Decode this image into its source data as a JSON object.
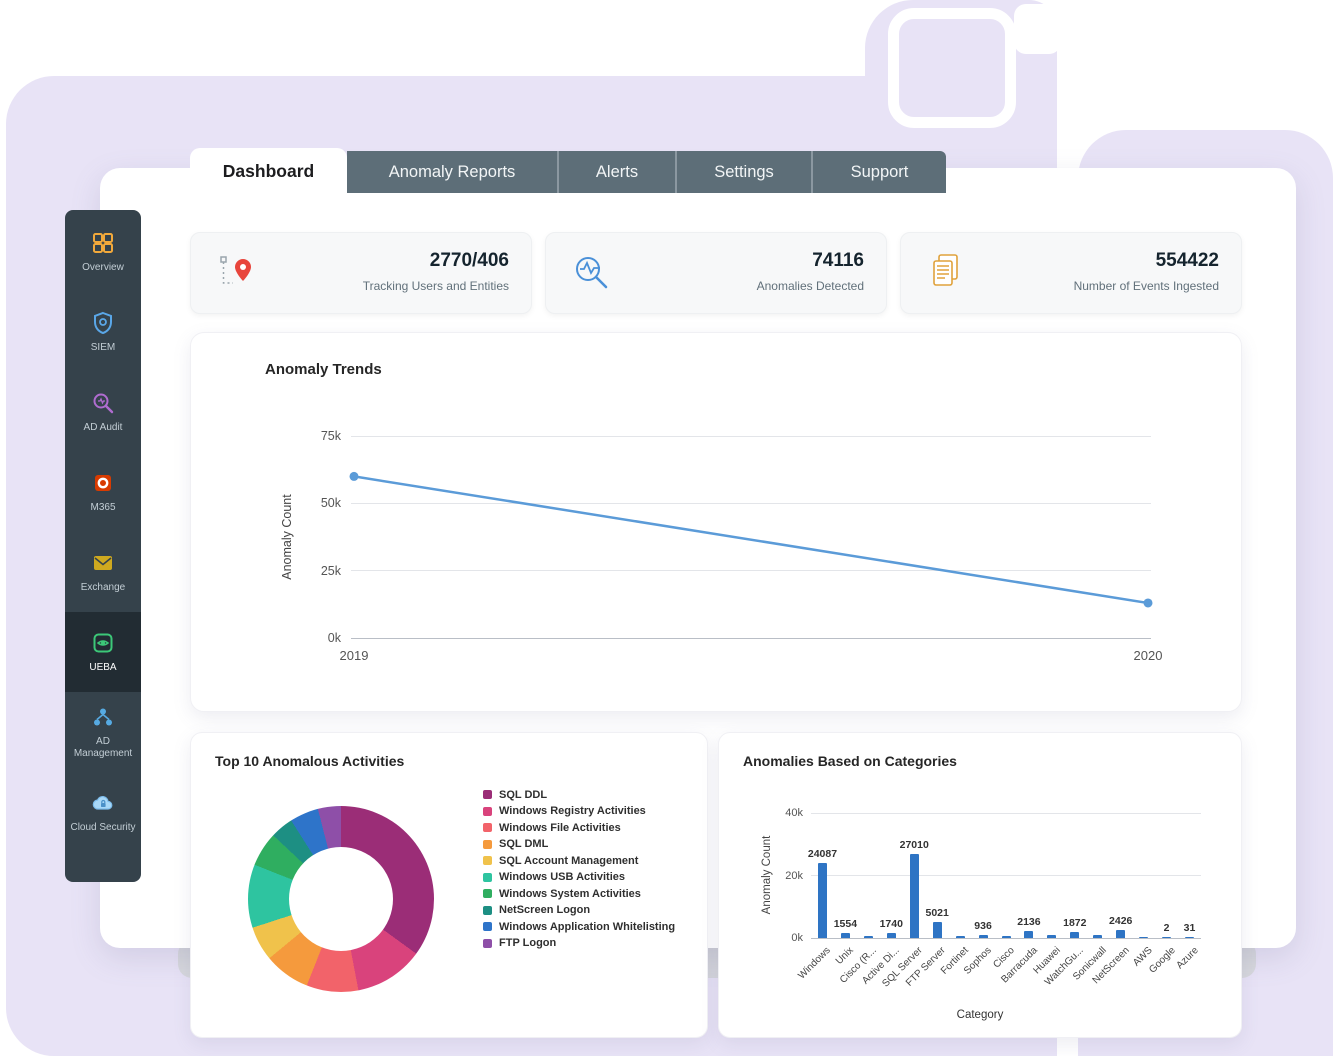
{
  "tabs": {
    "items": [
      {
        "label": "Dashboard",
        "active": true
      },
      {
        "label": "Anomaly Reports",
        "active": false
      },
      {
        "label": "Alerts",
        "active": false
      },
      {
        "label": "Settings",
        "active": false
      },
      {
        "label": "Support",
        "active": false
      }
    ]
  },
  "sidebar": {
    "items": [
      {
        "label": "Overview",
        "icon": "grid-icon",
        "active": false
      },
      {
        "label": "SIEM",
        "icon": "shield-icon",
        "active": false
      },
      {
        "label": "AD Audit",
        "icon": "audit-magnifier-icon",
        "active": false
      },
      {
        "label": "M365",
        "icon": "m365-icon",
        "active": false
      },
      {
        "label": "Exchange",
        "icon": "envelope-icon",
        "active": false
      },
      {
        "label": "UEBA",
        "icon": "ueba-eye-icon",
        "active": true
      },
      {
        "label": "AD Management",
        "icon": "org-chart-icon",
        "active": false
      },
      {
        "label": "Cloud Security",
        "icon": "cloud-lock-icon",
        "active": false
      }
    ]
  },
  "stats": [
    {
      "value": "2770/406",
      "caption": "Tracking Users and Entities",
      "icon": "route-pin-icon"
    },
    {
      "value": "74116",
      "caption": "Anomalies Detected",
      "icon": "anomaly-search-icon"
    },
    {
      "value": "554422",
      "caption": "Number of Events Ingested",
      "icon": "events-docs-icon"
    }
  ],
  "chart_data": [
    {
      "type": "line",
      "title": "Anomaly Trends",
      "xlabel": "",
      "ylabel": "Anomaly Count",
      "x": [
        "2019",
        "2020"
      ],
      "values": [
        60000,
        13000
      ],
      "ylim": [
        0,
        75000
      ],
      "yticks": [
        {
          "label": "0k",
          "value": 0
        },
        {
          "label": "25k",
          "value": 25000
        },
        {
          "label": "50k",
          "value": 50000
        },
        {
          "label": "75k",
          "value": 75000
        }
      ],
      "line_color": "#5b9bd8",
      "grid": true,
      "legend_position": "none"
    },
    {
      "type": "pie",
      "title": "Top 10 Anomalous Activities",
      "donut": true,
      "legend_position": "right",
      "segments": [
        {
          "label": "SQL DDL",
          "color": "#9b2d77",
          "pct": 35
        },
        {
          "label": "Windows Registry Activities",
          "color": "#d9437c",
          "pct": 12
        },
        {
          "label": "Windows File Activities",
          "color": "#f2636a",
          "pct": 9
        },
        {
          "label": "SQL DML",
          "color": "#f59a3d",
          "pct": 8
        },
        {
          "label": "SQL Account Management",
          "color": "#f0c24b",
          "pct": 6
        },
        {
          "label": "Windows USB Activities",
          "color": "#2ec4a0",
          "pct": 11
        },
        {
          "label": "Windows System Activities",
          "color": "#2fae60",
          "pct": 6
        },
        {
          "label": "NetScreen Logon",
          "color": "#1d8f83",
          "pct": 4
        },
        {
          "label": "Windows Application Whitelisting",
          "color": "#2e74c9",
          "pct": 5
        },
        {
          "label": "FTP Logon",
          "color": "#8e4fa8",
          "pct": 4
        }
      ]
    },
    {
      "type": "bar",
      "title": "Anomalies Based on Categories",
      "xlabel": "Category",
      "ylabel": "Anomaly Count",
      "ylim": [
        0,
        40000
      ],
      "yticks": [
        {
          "label": "0k",
          "value": 0
        },
        {
          "label": "20k",
          "value": 20000
        },
        {
          "label": "40k",
          "value": 40000
        }
      ],
      "bar_color": "#2e74c4",
      "bars": [
        {
          "category": "Windows",
          "value": 24087,
          "label": "24087"
        },
        {
          "category": "Unix",
          "value": 1554,
          "label": "1554"
        },
        {
          "category": "Cisco (R...",
          "value": 600,
          "label": ""
        },
        {
          "category": "Active Di...",
          "value": 1740,
          "label": "1740"
        },
        {
          "category": "SQL Server",
          "value": 27010,
          "label": "27010"
        },
        {
          "category": "FTP Server",
          "value": 5021,
          "label": "5021"
        },
        {
          "category": "Fortinet",
          "value": 800,
          "label": ""
        },
        {
          "category": "Sophos",
          "value": 936,
          "label": "936"
        },
        {
          "category": "Cisco",
          "value": 500,
          "label": ""
        },
        {
          "category": "Barracuda",
          "value": 2136,
          "label": "2136"
        },
        {
          "category": "Huawei",
          "value": 900,
          "label": ""
        },
        {
          "category": "WatchGu...",
          "value": 1872,
          "label": "1872"
        },
        {
          "category": "Sonicwall",
          "value": 1100,
          "label": ""
        },
        {
          "category": "NetScreen",
          "value": 2426,
          "label": "2426"
        },
        {
          "category": "AWS",
          "value": 400,
          "label": ""
        },
        {
          "category": "Google",
          "value": 2,
          "label": "2"
        },
        {
          "category": "Azure",
          "value": 31,
          "label": "31"
        }
      ]
    }
  ]
}
